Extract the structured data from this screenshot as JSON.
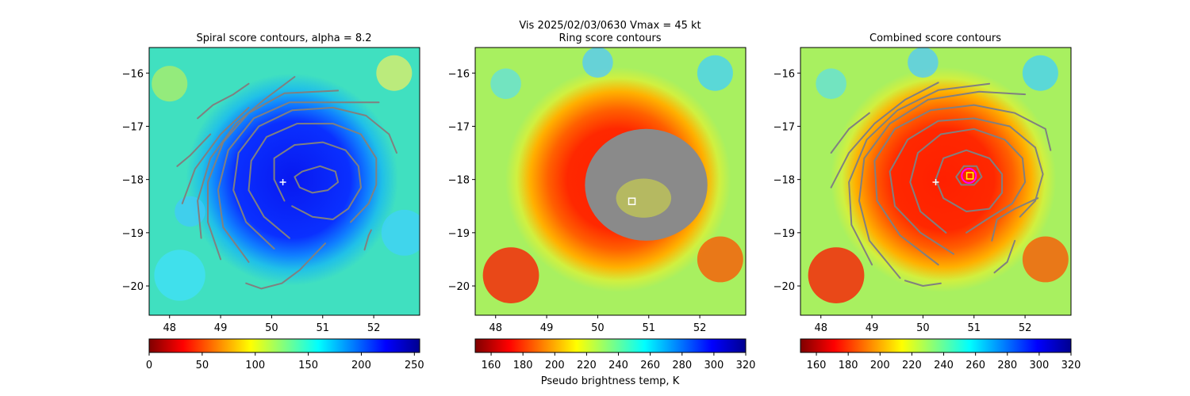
{
  "figure": {
    "suptitle": "Vis  2025/02/03/0630    Vmax = 45 kt"
  },
  "colormap": {
    "name": "jet",
    "stops": [
      "#800000",
      "#ff0000",
      "#ff8000",
      "#ffff00",
      "#80ff80",
      "#00ffff",
      "#0080ff",
      "#0000ff",
      "#00008f"
    ]
  },
  "chart_data": [
    {
      "type": "heatmap",
      "title": "Spiral score contours, alpha =  8.2",
      "xlim": [
        47.6,
        52.9
      ],
      "ylim": [
        -20.55,
        -15.52
      ],
      "x_ticks": [
        48,
        49,
        50,
        51,
        52
      ],
      "x_tick_labels": [
        "48",
        "49",
        "50",
        "51",
        "52"
      ],
      "y_ticks": [
        -16,
        -17,
        -18,
        -19,
        -20
      ],
      "y_tick_labels": [
        "−16",
        "−17",
        "−18",
        "−19",
        "−20"
      ],
      "colorbar": {
        "range": [
          0,
          255
        ],
        "ticks": [
          0,
          50,
          100,
          150,
          200,
          250
        ],
        "tick_labels": [
          "0",
          "50",
          "100",
          "150",
          "200",
          "250"
        ],
        "label": "",
        "reversed": false
      },
      "field": {
        "center": [
          50.4,
          -18.0
        ],
        "radius": 1.6,
        "background": "#40e0c0",
        "core": "#0818f0"
      },
      "markers": [
        {
          "type": "plus",
          "color": "#ffffff",
          "x": 50.22,
          "y": -18.05
        }
      ],
      "contours": [
        [
          [
            50.6,
            -17.85
          ],
          [
            50.95,
            -17.75
          ],
          [
            51.25,
            -17.85
          ],
          [
            51.3,
            -18.05
          ],
          [
            51.1,
            -18.2
          ],
          [
            50.8,
            -18.25
          ],
          [
            50.55,
            -18.15
          ],
          [
            50.45,
            -17.95
          ],
          [
            50.6,
            -17.85
          ]
        ],
        [
          [
            50.25,
            -18.4
          ],
          [
            50.05,
            -18.0
          ],
          [
            50.05,
            -17.6
          ],
          [
            50.45,
            -17.35
          ],
          [
            51.0,
            -17.3
          ],
          [
            51.45,
            -17.45
          ],
          [
            51.7,
            -17.75
          ],
          [
            51.75,
            -18.15
          ],
          [
            51.5,
            -18.55
          ],
          [
            51.2,
            -18.75
          ],
          [
            50.8,
            -18.7
          ],
          [
            50.4,
            -18.5
          ]
        ],
        [
          [
            50.35,
            -19.1
          ],
          [
            49.85,
            -18.7
          ],
          [
            49.55,
            -18.2
          ],
          [
            49.6,
            -17.65
          ],
          [
            49.9,
            -17.2
          ],
          [
            50.5,
            -16.95
          ],
          [
            51.2,
            -16.95
          ],
          [
            51.75,
            -17.15
          ],
          [
            52.05,
            -17.6
          ],
          [
            52.05,
            -18.1
          ],
          [
            51.9,
            -18.45
          ],
          [
            51.55,
            -18.8
          ]
        ],
        [
          [
            50.05,
            -19.3
          ],
          [
            49.5,
            -18.8
          ],
          [
            49.25,
            -18.2
          ],
          [
            49.35,
            -17.5
          ],
          [
            49.75,
            -17.0
          ],
          [
            50.4,
            -16.7
          ],
          [
            51.2,
            -16.65
          ],
          [
            51.85,
            -16.8
          ],
          [
            52.3,
            -17.15
          ],
          [
            52.45,
            -17.5
          ]
        ],
        [
          [
            49.55,
            -19.55
          ],
          [
            49.05,
            -18.9
          ],
          [
            48.95,
            -18.2
          ],
          [
            49.15,
            -17.45
          ],
          [
            49.65,
            -16.85
          ],
          [
            50.35,
            -16.55
          ],
          [
            51.4,
            -16.55
          ],
          [
            52.1,
            -16.55
          ]
        ],
        [
          [
            49.0,
            -19.5
          ],
          [
            48.75,
            -18.8
          ],
          [
            48.75,
            -18.05
          ],
          [
            49.05,
            -17.3
          ],
          [
            49.55,
            -16.75
          ],
          [
            50.25,
            -16.38
          ],
          [
            51.3,
            -16.33
          ]
        ],
        [
          [
            48.62,
            -19.1
          ],
          [
            48.55,
            -18.4
          ],
          [
            48.8,
            -17.6
          ],
          [
            49.3,
            -16.95
          ],
          [
            49.85,
            -16.5
          ],
          [
            50.45,
            -16.07
          ]
        ],
        [
          [
            48.25,
            -18.45
          ],
          [
            48.5,
            -17.8
          ],
          [
            49.0,
            -17.15
          ],
          [
            49.55,
            -16.65
          ]
        ],
        [
          [
            48.15,
            -17.75
          ],
          [
            48.4,
            -17.55
          ],
          [
            48.8,
            -17.15
          ]
        ],
        [
          [
            48.55,
            -16.85
          ],
          [
            48.85,
            -16.6
          ],
          [
            49.25,
            -16.4
          ],
          [
            49.55,
            -16.2
          ]
        ],
        [
          [
            51.82,
            -19.32
          ],
          [
            51.9,
            -19.05
          ],
          [
            51.95,
            -18.95
          ]
        ],
        [
          [
            49.5,
            -19.95
          ],
          [
            49.8,
            -20.05
          ],
          [
            50.2,
            -19.95
          ],
          [
            50.55,
            -19.7
          ],
          [
            50.85,
            -19.4
          ],
          [
            51.05,
            -19.2
          ]
        ]
      ]
    },
    {
      "type": "heatmap",
      "title": "Ring score contours",
      "xlim": [
        47.6,
        52.9
      ],
      "ylim": [
        -20.55,
        -15.52
      ],
      "x_ticks": [
        48,
        49,
        50,
        51,
        52
      ],
      "x_tick_labels": [
        "48",
        "49",
        "50",
        "51",
        "52"
      ],
      "y_ticks": [
        -16,
        -17,
        -18,
        -19,
        -20
      ],
      "y_tick_labels": [
        "−16",
        "−17",
        "−18",
        "−19",
        "−20"
      ],
      "colorbar": {
        "range": [
          150,
          320
        ],
        "ticks": [
          160,
          180,
          200,
          220,
          240,
          260,
          280,
          300,
          320
        ],
        "tick_labels": [
          "160",
          "180",
          "200",
          "220",
          "240",
          "260",
          "280",
          "300",
          "320"
        ],
        "label": "Pseudo brightness temp, K",
        "reversed": false
      },
      "field": {
        "center": [
          50.4,
          -18.0
        ],
        "radius": 1.7,
        "background": "#a8f060",
        "core": "#ff2000"
      },
      "markers": [
        {
          "type": "square",
          "color": "#ffffff",
          "x": 50.67,
          "y": -18.41
        }
      ],
      "ring_blob": {
        "center": [
          50.95,
          -18.1
        ],
        "rx": 1.2,
        "ry": 1.05
      }
    },
    {
      "type": "heatmap",
      "title": "Combined score contours",
      "xlim": [
        47.6,
        52.9
      ],
      "ylim": [
        -20.55,
        -15.52
      ],
      "x_ticks": [
        48,
        49,
        50,
        51,
        52
      ],
      "x_tick_labels": [
        "48",
        "49",
        "50",
        "51",
        "52"
      ],
      "y_ticks": [
        -16,
        -17,
        -18,
        -19,
        -20
      ],
      "y_tick_labels": [
        "−16",
        "−17",
        "−18",
        "−19",
        "−20"
      ],
      "colorbar": {
        "range": [
          150,
          320
        ],
        "ticks": [
          160,
          180,
          200,
          220,
          240,
          260,
          280,
          300,
          320
        ],
        "tick_labels": [
          "160",
          "180",
          "200",
          "220",
          "240",
          "260",
          "280",
          "300",
          "320"
        ],
        "label": "",
        "reversed": false
      },
      "field": {
        "center": [
          50.4,
          -18.0
        ],
        "radius": 1.7,
        "background": "#a8f060",
        "core": "#ff2000"
      },
      "markers": [
        {
          "type": "plus",
          "color": "#ffffff",
          "x": 50.25,
          "y": -18.05
        },
        {
          "type": "circle",
          "color": "#ff00ff",
          "x": 50.9,
          "y": -17.93
        },
        {
          "type": "square",
          "color": "#ffff00",
          "x": 50.92,
          "y": -17.93
        }
      ],
      "contours": [
        [
          [
            50.65,
            -17.95
          ],
          [
            50.8,
            -17.75
          ],
          [
            51.05,
            -17.75
          ],
          [
            51.15,
            -17.95
          ],
          [
            51.0,
            -18.1
          ],
          [
            50.75,
            -18.1
          ],
          [
            50.65,
            -17.95
          ]
        ],
        [
          [
            50.4,
            -18.35
          ],
          [
            50.25,
            -18.0
          ],
          [
            50.4,
            -17.6
          ],
          [
            50.85,
            -17.45
          ],
          [
            51.3,
            -17.6
          ],
          [
            51.55,
            -17.9
          ],
          [
            51.55,
            -18.25
          ],
          [
            51.3,
            -18.55
          ],
          [
            50.85,
            -18.6
          ],
          [
            50.4,
            -18.35
          ]
        ],
        [
          [
            50.45,
            -19.0
          ],
          [
            49.95,
            -18.6
          ],
          [
            49.75,
            -18.05
          ],
          [
            49.9,
            -17.5
          ],
          [
            50.35,
            -17.15
          ],
          [
            51.0,
            -17.05
          ],
          [
            51.6,
            -17.25
          ],
          [
            51.95,
            -17.6
          ],
          [
            52.0,
            -18.05
          ],
          [
            51.75,
            -18.45
          ],
          [
            51.25,
            -18.75
          ],
          [
            50.85,
            -19.0
          ]
        ],
        [
          [
            50.6,
            -19.4
          ],
          [
            49.95,
            -19.0
          ],
          [
            49.45,
            -18.5
          ],
          [
            49.35,
            -17.85
          ],
          [
            49.7,
            -17.25
          ],
          [
            50.3,
            -16.9
          ],
          [
            51.0,
            -16.85
          ],
          [
            51.7,
            -17.0
          ],
          [
            52.2,
            -17.4
          ],
          [
            52.35,
            -17.9
          ],
          [
            52.2,
            -18.4
          ],
          [
            51.9,
            -18.7
          ]
        ],
        [
          [
            50.3,
            -19.6
          ],
          [
            49.55,
            -19.05
          ],
          [
            49.1,
            -18.4
          ],
          [
            49.05,
            -17.65
          ],
          [
            49.45,
            -17.05
          ],
          [
            50.15,
            -16.7
          ],
          [
            51.0,
            -16.6
          ],
          [
            51.8,
            -16.75
          ],
          [
            52.4,
            -17.05
          ],
          [
            52.5,
            -17.45
          ]
        ],
        [
          [
            49.55,
            -19.85
          ],
          [
            48.95,
            -19.15
          ],
          [
            48.75,
            -18.4
          ],
          [
            48.85,
            -17.6
          ],
          [
            49.35,
            -16.95
          ],
          [
            50.1,
            -16.5
          ],
          [
            51.1,
            -16.35
          ],
          [
            52.0,
            -16.4
          ]
        ],
        [
          [
            49.0,
            -19.6
          ],
          [
            48.6,
            -18.85
          ],
          [
            48.55,
            -18.05
          ],
          [
            48.9,
            -17.25
          ],
          [
            49.5,
            -16.7
          ],
          [
            50.3,
            -16.32
          ],
          [
            51.3,
            -16.2
          ]
        ],
        [
          [
            48.2,
            -18.15
          ],
          [
            48.55,
            -17.5
          ],
          [
            49.05,
            -16.95
          ],
          [
            49.65,
            -16.5
          ],
          [
            50.3,
            -16.18
          ]
        ],
        [
          [
            48.2,
            -17.5
          ],
          [
            48.55,
            -17.05
          ],
          [
            48.95,
            -16.75
          ]
        ],
        [
          [
            51.35,
            -19.15
          ],
          [
            51.45,
            -18.75
          ],
          [
            51.8,
            -18.55
          ],
          [
            52.25,
            -18.35
          ]
        ],
        [
          [
            51.4,
            -19.75
          ],
          [
            51.65,
            -19.55
          ],
          [
            51.8,
            -19.15
          ]
        ],
        [
          [
            49.65,
            -19.9
          ],
          [
            50.0,
            -20.0
          ],
          [
            50.35,
            -19.95
          ]
        ]
      ]
    }
  ]
}
